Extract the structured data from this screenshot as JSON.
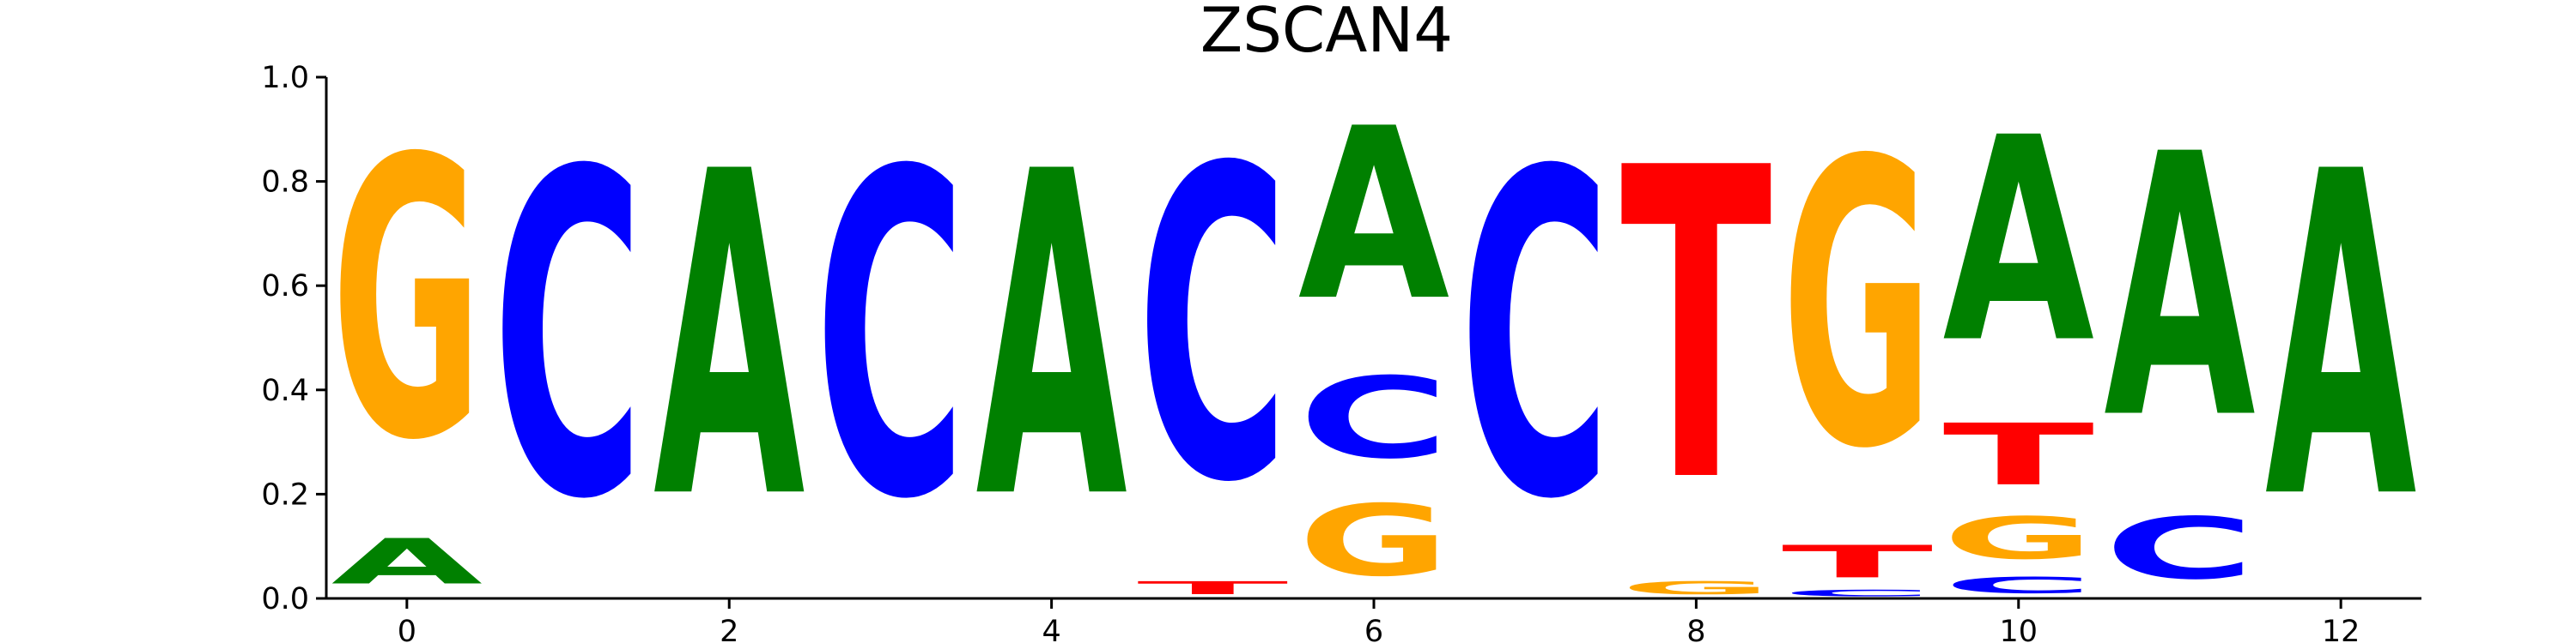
{
  "chart_data": {
    "type": "sequence-logo",
    "title": "ZSCAN4",
    "xlabel": "",
    "ylabel": "",
    "xlim": [
      -0.5,
      12.5
    ],
    "ylim": [
      0,
      1.0
    ],
    "x_ticks": [
      "0",
      "2",
      "4",
      "6",
      "8",
      "10",
      "12"
    ],
    "y_ticks": [
      "0.0",
      "0.2",
      "0.4",
      "0.6",
      "0.8",
      "1.0"
    ],
    "grid": false,
    "colors": {
      "A": "#008000",
      "C": "#0000ff",
      "G": "#ffa500",
      "T": "#ff0000"
    },
    "positions": [
      {
        "pos": 0,
        "letters": [
          {
            "base": "A",
            "value": 0.14
          },
          {
            "base": "G",
            "value": 0.86
          }
        ]
      },
      {
        "pos": 1,
        "letters": [
          {
            "base": "C",
            "value": 1.0
          }
        ]
      },
      {
        "pos": 2,
        "letters": [
          {
            "base": "A",
            "value": 1.0
          }
        ]
      },
      {
        "pos": 3,
        "letters": [
          {
            "base": "C",
            "value": 1.0
          }
        ]
      },
      {
        "pos": 4,
        "letters": [
          {
            "base": "A",
            "value": 1.0
          }
        ]
      },
      {
        "pos": 5,
        "letters": [
          {
            "base": "T",
            "value": 0.04
          },
          {
            "base": "C",
            "value": 0.96
          }
        ]
      },
      {
        "pos": 6,
        "letters": [
          {
            "base": "G",
            "value": 0.22
          },
          {
            "base": "C",
            "value": 0.25
          },
          {
            "base": "A",
            "value": 0.53
          }
        ]
      },
      {
        "pos": 7,
        "letters": [
          {
            "base": "C",
            "value": 1.0
          }
        ]
      },
      {
        "pos": 8,
        "letters": [
          {
            "base": "G",
            "value": 0.04
          },
          {
            "base": "T",
            "value": 0.96
          }
        ]
      },
      {
        "pos": 9,
        "letters": [
          {
            "base": "C",
            "value": 0.02
          },
          {
            "base": "T",
            "value": 0.1
          },
          {
            "base": "G",
            "value": 0.88
          }
        ]
      },
      {
        "pos": 10,
        "letters": [
          {
            "base": "C",
            "value": 0.05
          },
          {
            "base": "G",
            "value": 0.13
          },
          {
            "base": "T",
            "value": 0.19
          },
          {
            "base": "A",
            "value": 0.63
          }
        ]
      },
      {
        "pos": 11,
        "letters": [
          {
            "base": "C",
            "value": 0.19
          },
          {
            "base": "A",
            "value": 0.81
          }
        ]
      },
      {
        "pos": 12,
        "letters": [
          {
            "base": "A",
            "value": 1.0
          }
        ]
      }
    ]
  }
}
